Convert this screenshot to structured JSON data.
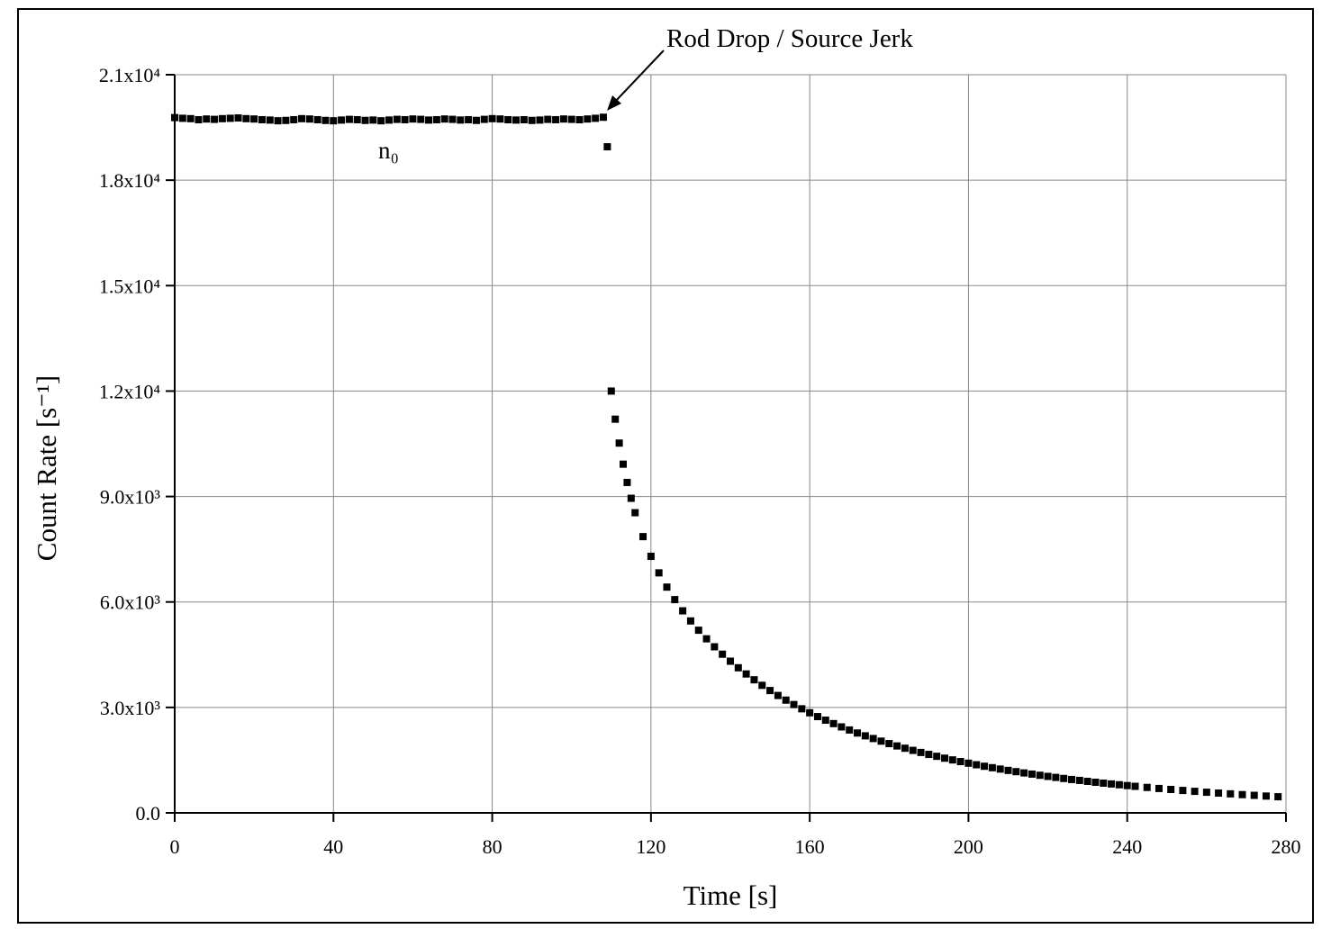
{
  "chart_data": {
    "type": "scatter",
    "xlabel": "Time [s]",
    "ylabel": "Count Rate [s⁻¹]",
    "annotations": [
      "Rod Drop / Source Jerk",
      "n₀"
    ],
    "xlim": [
      0,
      280
    ],
    "xticks": [
      0,
      40,
      80,
      120,
      160,
      200,
      240,
      280
    ],
    "ylim": [
      0,
      21000
    ],
    "yticks": [
      {
        "value": 0,
        "label": "0.0"
      },
      {
        "value": 3000,
        "label": "3.0x10³"
      },
      {
        "value": 6000,
        "label": "6.0x10³"
      },
      {
        "value": 9000,
        "label": "9.0x10³"
      },
      {
        "value": 12000,
        "label": "1.2x10⁴"
      },
      {
        "value": 15000,
        "label": "1.5x10⁴"
      },
      {
        "value": 18000,
        "label": "1.8x10⁴"
      },
      {
        "value": 21000,
        "label": "2.1x10⁴"
      }
    ],
    "grid": true,
    "series": [
      {
        "color": "#000000",
        "x": [
          0,
          2,
          4,
          6,
          8,
          10,
          12,
          14,
          16,
          18,
          20,
          22,
          24,
          26,
          28,
          30,
          32,
          34,
          36,
          38,
          40,
          42,
          44,
          46,
          48,
          50,
          52,
          54,
          56,
          58,
          60,
          62,
          64,
          66,
          68,
          70,
          72,
          74,
          76,
          78,
          80,
          82,
          84,
          86,
          88,
          90,
          92,
          94,
          96,
          98,
          100,
          102,
          104,
          106,
          108,
          109,
          110,
          111,
          112,
          113,
          114,
          115,
          116,
          118,
          120,
          122,
          124,
          126,
          128,
          130,
          132,
          134,
          136,
          138,
          140,
          142,
          144,
          146,
          148,
          150,
          152,
          154,
          156,
          158,
          160,
          162,
          164,
          166,
          168,
          170,
          172,
          174,
          176,
          178,
          180,
          182,
          184,
          186,
          188,
          190,
          192,
          194,
          196,
          198,
          200,
          202,
          204,
          206,
          208,
          210,
          212,
          214,
          216,
          218,
          220,
          222,
          224,
          226,
          228,
          230,
          232,
          234,
          236,
          238,
          240,
          242,
          245,
          248,
          251,
          254,
          257,
          260,
          263,
          266,
          269,
          272,
          275,
          278
        ],
        "values": [
          19780,
          19760,
          19750,
          19720,
          19740,
          19730,
          19750,
          19760,
          19770,
          19750,
          19740,
          19720,
          19710,
          19690,
          19700,
          19720,
          19750,
          19740,
          19720,
          19700,
          19690,
          19710,
          19730,
          19720,
          19700,
          19710,
          19690,
          19710,
          19730,
          19720,
          19740,
          19730,
          19710,
          19720,
          19740,
          19730,
          19710,
          19720,
          19700,
          19730,
          19750,
          19740,
          19720,
          19710,
          19720,
          19700,
          19710,
          19730,
          19720,
          19740,
          19730,
          19720,
          19740,
          19760,
          19790,
          18950,
          12000,
          11200,
          10520,
          9920,
          9400,
          8950,
          8540,
          7859,
          7298,
          6828,
          6423,
          6067,
          5748,
          5460,
          5196,
          4952,
          4725,
          4514,
          4315,
          4128,
          3952,
          3786,
          3629,
          3480,
          3340,
          3208,
          3082,
          2961,
          2848,
          2739,
          2637,
          2540,
          2446,
          2358,
          2272,
          2192,
          2115,
          2041,
          1971,
          1904,
          1839,
          1778,
          1719,
          1663,
          1609,
          1556,
          1507,
          1459,
          1414,
          1369,
          1326,
          1285,
          1246,
          1208,
          1172,
          1137,
          1103,
          1070,
          1038,
          1009,
          979,
          950,
          924,
          896,
          871,
          846,
          823,
          800,
          777,
          755,
          724,
          694,
          666,
          638,
          612,
          587,
          563,
          541,
          519,
          499,
          478,
          459
        ]
      }
    ]
  }
}
